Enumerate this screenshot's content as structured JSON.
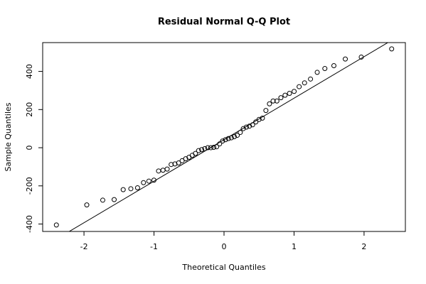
{
  "chart_data": {
    "type": "qq",
    "title": "Residual Normal Q-Q Plot",
    "x_label": "Theoretical Quantiles",
    "y_label": "Sample Quantiles",
    "x": [
      -2.394,
      -1.96,
      -1.732,
      -1.569,
      -1.44,
      -1.331,
      -1.235,
      -1.15,
      -1.073,
      -1.001,
      -0.935,
      -0.872,
      -0.812,
      -0.755,
      -0.701,
      -0.649,
      -0.598,
      -0.548,
      -0.5,
      -0.454,
      -0.408,
      -0.363,
      -0.319,
      -0.275,
      -0.232,
      -0.189,
      -0.147,
      -0.105,
      -0.063,
      -0.021,
      0.021,
      0.063,
      0.105,
      0.147,
      0.189,
      0.232,
      0.275,
      0.319,
      0.363,
      0.408,
      0.454,
      0.5,
      0.548,
      0.598,
      0.649,
      0.701,
      0.755,
      0.812,
      0.872,
      0.935,
      1.001,
      1.073,
      1.15,
      1.235,
      1.331,
      1.44,
      1.569,
      1.732,
      1.96,
      2.394
    ],
    "values": [
      -405,
      -300,
      -275,
      -272,
      -220,
      -215,
      -210,
      -183,
      -175,
      -170,
      -122,
      -118,
      -112,
      -88,
      -85,
      -80,
      -68,
      -58,
      -50,
      -40,
      -30,
      -15,
      -10,
      -5,
      0,
      0,
      2,
      5,
      20,
      35,
      42,
      48,
      52,
      58,
      65,
      80,
      100,
      108,
      113,
      120,
      135,
      148,
      155,
      195,
      230,
      245,
      245,
      262,
      275,
      285,
      295,
      320,
      340,
      360,
      395,
      415,
      430,
      465,
      475,
      518
    ],
    "qqline": {
      "intercept": 42,
      "slope": 217.6
    },
    "color": "#000000",
    "xlim": [
      -2.59,
      2.59
    ],
    "xticks": [
      -2,
      -1,
      0,
      1,
      2
    ],
    "ylim": [
      -439,
      551
    ],
    "yticks": [
      -400,
      -200,
      0,
      200,
      400
    ]
  }
}
